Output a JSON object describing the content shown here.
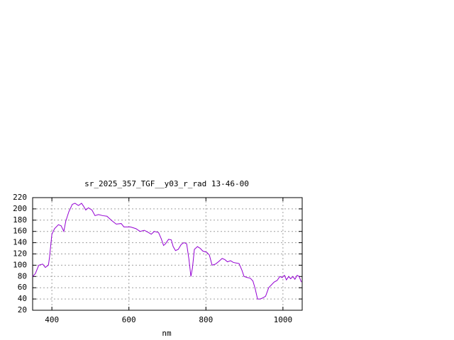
{
  "chart_data": {
    "type": "line",
    "title": "sr_2025_357_TGF__y03_r_rad 13-46-00",
    "x_label": "nm",
    "x": [
      350,
      357,
      366,
      376,
      383,
      391,
      394,
      400,
      407,
      417,
      424,
      431,
      436,
      444,
      453,
      460,
      469,
      477,
      482,
      488,
      495,
      504,
      512,
      521,
      532,
      543,
      554,
      567,
      580,
      587,
      604,
      618,
      629,
      640,
      651,
      658,
      666,
      677,
      684,
      690,
      695,
      703,
      710,
      715,
      721,
      728,
      736,
      743,
      750,
      756,
      761,
      765,
      770,
      778,
      785,
      792,
      802,
      809,
      816,
      825,
      834,
      842,
      849,
      856,
      864,
      871,
      878,
      886,
      893,
      899,
      908,
      915,
      922,
      928,
      934,
      941,
      948,
      955,
      963,
      970,
      977,
      985,
      992,
      998,
      1004,
      1009,
      1015,
      1020,
      1026,
      1031,
      1037,
      1042,
      1048
    ],
    "series": [
      {
        "name": "sr_2025_357_TGF__y03_r_rad",
        "color": "#9400d3",
        "values": [
          80,
          85,
          100,
          102,
          96,
          100,
          115,
          155,
          165,
          172,
          170,
          160,
          178,
          195,
          208,
          210,
          206,
          210,
          205,
          198,
          202,
          198,
          188,
          190,
          188,
          187,
          180,
          173,
          174,
          168,
          168,
          165,
          160,
          162,
          158,
          155,
          160,
          158,
          147,
          135,
          138,
          146,
          145,
          133,
          126,
          128,
          137,
          140,
          138,
          110,
          80,
          95,
          128,
          133,
          130,
          125,
          123,
          118,
          100,
          102,
          107,
          112,
          110,
          106,
          108,
          105,
          104,
          103,
          92,
          80,
          78,
          77,
          72,
          58,
          40,
          40,
          42,
          45,
          60,
          65,
          70,
          73,
          80,
          78,
          82,
          74,
          80,
          76,
          80,
          75,
          82,
          80,
          70
        ]
      }
    ],
    "xlim": [
      350,
      1050
    ],
    "ylim": [
      20,
      220
    ],
    "xticks": [
      400,
      600,
      800,
      1000
    ],
    "yticks": [
      20,
      40,
      60,
      80,
      100,
      120,
      140,
      160,
      180,
      200,
      220
    ],
    "grid": true
  }
}
